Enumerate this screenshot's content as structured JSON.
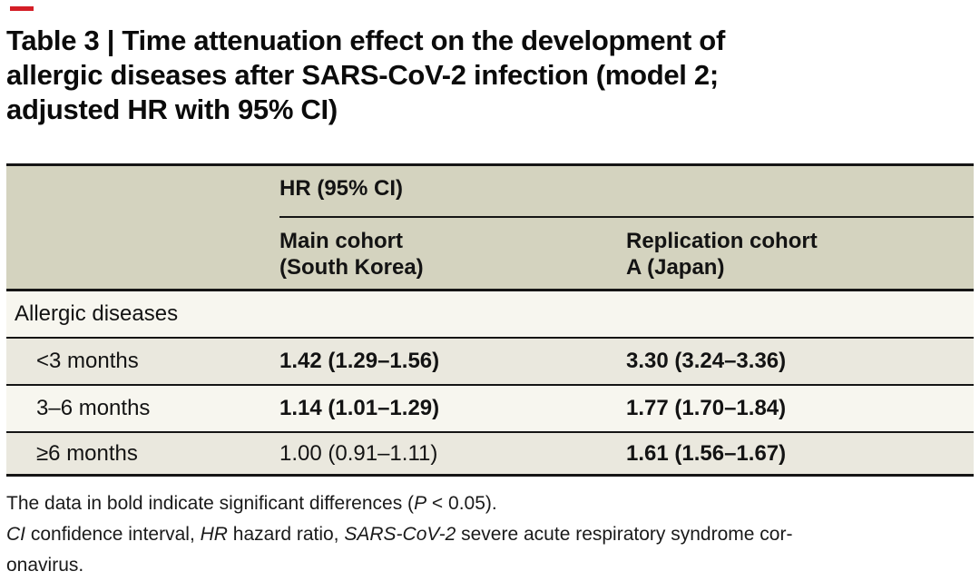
{
  "title": {
    "lines": [
      "Table 3 | Time attenuation effect on the development of",
      "allergic diseases after SARS-CoV-2 infection (model 2;",
      "adjusted HR with 95% CI)"
    ]
  },
  "table": {
    "group_header": "HR (95% CI)",
    "columns": [
      {
        "lines": [
          "Main cohort",
          "(South Korea)"
        ]
      },
      {
        "lines": [
          "Replication cohort",
          "A (Japan)"
        ]
      }
    ],
    "category": "Allergic diseases",
    "rows": [
      {
        "label": "<3 months",
        "main": "1.42 (1.29–1.56)",
        "main_significant": true,
        "replication": "3.30 (3.24–3.36)",
        "replication_significant": true
      },
      {
        "label": "3–6 months",
        "main": "1.14 (1.01–1.29)",
        "main_significant": true,
        "replication": "1.77 (1.70–1.84)",
        "replication_significant": true
      },
      {
        "label": "≥6 months",
        "main": "1.00 (0.91–1.11)",
        "main_significant": false,
        "replication": "1.61 (1.56–1.67)",
        "replication_significant": true
      }
    ],
    "colors": {
      "header_bg": "#d4d3bf",
      "row_light": "#f7f6ef",
      "row_shaded": "#eae8de",
      "border": "#151515",
      "red_mark": "#d41e26"
    }
  },
  "footnotes": {
    "significance": {
      "pre": "The data in bold indicate significant differences (",
      "italic": "P",
      "post": " < 0.05)."
    },
    "abbreviations": {
      "i1": "CI",
      "t1": " confidence interval, ",
      "i2": "HR",
      "t2": " hazard ratio, ",
      "i3": "SARS-CoV-2",
      "t3": " severe acute respiratory syndrome cor-"
    },
    "continuation": "onavirus."
  }
}
